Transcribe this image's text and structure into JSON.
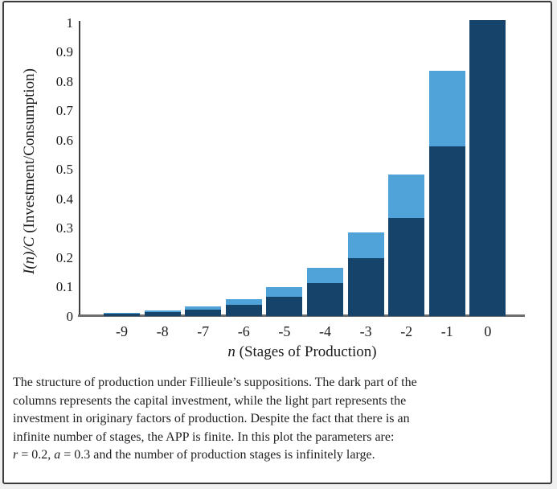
{
  "figure": {
    "background": "#ffffff",
    "border_color": "#3c3c3c"
  },
  "chart_data": {
    "type": "bar",
    "stacked": true,
    "title": "",
    "xlabel_segments": [
      {
        "text": "n",
        "italic": true
      },
      {
        "text": " (Stages of Production)",
        "italic": false
      }
    ],
    "ylabel_segments": [
      {
        "text": "I(n)/C",
        "italic": true
      },
      {
        "text": " (Investment/Consumption)",
        "italic": false
      }
    ],
    "categories": [
      "-9",
      "-8",
      "-7",
      "-6",
      "-5",
      "-4",
      "-3",
      "-2",
      "-1",
      "0"
    ],
    "series": [
      {
        "name": "Capital investment (dark part)",
        "color": "#15436a",
        "values": [
          0.009,
          0.014,
          0.024,
          0.041,
          0.068,
          0.115,
          0.198,
          0.336,
          0.58,
          1.01
        ]
      },
      {
        "name": "Investment in originary factors of production (light part)",
        "color": "#4fa3d8",
        "values": [
          0.004,
          0.007,
          0.011,
          0.019,
          0.032,
          0.051,
          0.088,
          0.148,
          0.258,
          0.0
        ]
      }
    ],
    "ylim": [
      0,
      1
    ],
    "ytick_values": [
      0,
      0.1,
      0.2,
      0.3,
      0.4,
      0.5,
      0.6,
      0.7,
      0.8,
      0.9,
      1
    ],
    "ytick_labels": [
      "0",
      "0.1",
      "0.2",
      "0.3",
      "0.4",
      "0.5",
      "0.6",
      "0.7",
      "0.8",
      "0.9",
      "1"
    ],
    "grid": false,
    "legend": "none"
  },
  "caption": {
    "lines": [
      [
        {
          "text": "The structure of production under Fillieule’s suppositions. The dark part of the",
          "italic": false
        }
      ],
      [
        {
          "text": "columns represents the capital investment, while the light part represents the",
          "italic": false
        }
      ],
      [
        {
          "text": "investment in originary factors of production. Despite the fact that there is an",
          "italic": false
        }
      ],
      [
        {
          "text": "infinite number of stages, the APP is finite. In this plot the parameters are:",
          "italic": false
        }
      ],
      [
        {
          "text": "r",
          "italic": true
        },
        {
          "text": " = 0.2, ",
          "italic": false
        },
        {
          "text": "a",
          "italic": true
        },
        {
          "text": " = 0.3 and the number of production stages is infinitely large.",
          "italic": false
        }
      ]
    ]
  }
}
